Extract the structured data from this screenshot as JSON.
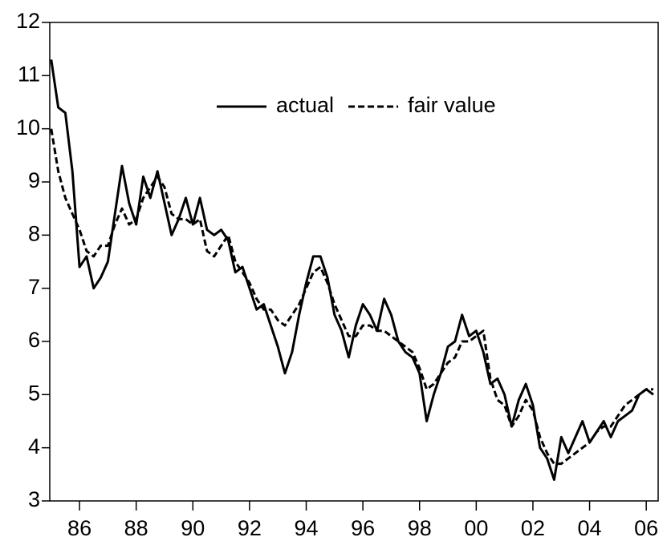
{
  "chart_data": {
    "type": "line",
    "x": [
      1985.0,
      1985.25,
      1985.5,
      1985.75,
      1986.0,
      1986.25,
      1986.5,
      1986.75,
      1987.0,
      1987.25,
      1987.5,
      1987.75,
      1988.0,
      1988.25,
      1988.5,
      1988.75,
      1989.0,
      1989.25,
      1989.5,
      1989.75,
      1990.0,
      1990.25,
      1990.5,
      1990.75,
      1991.0,
      1991.25,
      1991.5,
      1991.75,
      1992.0,
      1992.25,
      1992.5,
      1992.75,
      1993.0,
      1993.25,
      1993.5,
      1993.75,
      1994.0,
      1994.25,
      1994.5,
      1994.75,
      1995.0,
      1995.25,
      1995.5,
      1995.75,
      1996.0,
      1996.25,
      1996.5,
      1996.75,
      1997.0,
      1997.25,
      1997.5,
      1997.75,
      1998.0,
      1998.25,
      1998.5,
      1998.75,
      1999.0,
      1999.25,
      1999.5,
      1999.75,
      2000.0,
      2000.25,
      2000.5,
      2000.75,
      2001.0,
      2001.25,
      2001.5,
      2001.75,
      2002.0,
      2002.25,
      2002.5,
      2002.75,
      2003.0,
      2003.25,
      2003.5,
      2003.75,
      2004.0,
      2004.25,
      2004.5,
      2004.75,
      2005.0,
      2005.25,
      2005.5,
      2005.75,
      2006.0,
      2006.25
    ],
    "series": [
      {
        "name": "actual",
        "color": "#000000",
        "dash": "solid",
        "values": [
          11.3,
          10.4,
          10.3,
          9.2,
          7.4,
          7.6,
          7.0,
          7.2,
          7.5,
          8.4,
          9.3,
          8.6,
          8.2,
          9.1,
          8.7,
          9.2,
          8.6,
          8.0,
          8.3,
          8.7,
          8.2,
          8.7,
          8.1,
          8.0,
          8.1,
          7.9,
          7.3,
          7.4,
          7.0,
          6.6,
          6.7,
          6.3,
          5.9,
          5.4,
          5.8,
          6.5,
          7.1,
          7.6,
          7.6,
          7.2,
          6.5,
          6.2,
          5.7,
          6.3,
          6.7,
          6.5,
          6.2,
          6.8,
          6.5,
          6.0,
          5.8,
          5.7,
          5.4,
          4.5,
          5.0,
          5.4,
          5.9,
          6.0,
          6.5,
          6.1,
          6.2,
          5.8,
          5.2,
          5.3,
          5.0,
          4.4,
          4.9,
          5.2,
          4.8,
          4.0,
          3.8,
          3.4,
          4.2,
          3.9,
          4.2,
          4.5,
          4.1,
          4.3,
          4.5,
          4.2,
          4.5,
          4.6,
          4.7,
          5.0,
          5.1,
          5.0
        ]
      },
      {
        "name": "fair value",
        "color": "#000000",
        "dash": "dashed",
        "values": [
          10.0,
          9.2,
          8.7,
          8.4,
          8.1,
          7.7,
          7.6,
          7.8,
          7.8,
          8.2,
          8.5,
          8.2,
          8.3,
          8.7,
          8.9,
          9.1,
          8.9,
          8.4,
          8.3,
          8.3,
          8.2,
          8.3,
          7.7,
          7.6,
          7.8,
          8.0,
          7.5,
          7.3,
          7.1,
          6.8,
          6.6,
          6.6,
          6.4,
          6.3,
          6.5,
          6.7,
          7.0,
          7.3,
          7.4,
          7.1,
          6.7,
          6.4,
          6.1,
          6.1,
          6.3,
          6.3,
          6.2,
          6.2,
          6.1,
          6.0,
          5.9,
          5.8,
          5.5,
          5.1,
          5.2,
          5.4,
          5.6,
          5.7,
          6.0,
          6.0,
          6.1,
          6.2,
          5.3,
          4.9,
          4.8,
          4.4,
          4.6,
          4.9,
          4.7,
          4.2,
          3.9,
          3.7,
          3.7,
          3.8,
          3.9,
          4.0,
          4.1,
          4.3,
          4.4,
          4.4,
          4.6,
          4.8,
          4.9,
          5.0,
          5.1,
          5.1
        ]
      }
    ],
    "xlim": [
      1984.95,
      2006.42
    ],
    "xticks": [
      {
        "value": 1986,
        "label": "86"
      },
      {
        "value": 1988,
        "label": "88"
      },
      {
        "value": 1990,
        "label": "90"
      },
      {
        "value": 1992,
        "label": "92"
      },
      {
        "value": 1994,
        "label": "94"
      },
      {
        "value": 1996,
        "label": "96"
      },
      {
        "value": 1998,
        "label": "98"
      },
      {
        "value": 2000,
        "label": "00"
      },
      {
        "value": 2002,
        "label": "02"
      },
      {
        "value": 2004,
        "label": "04"
      },
      {
        "value": 2006,
        "label": "06"
      }
    ],
    "ylim": [
      3,
      12
    ],
    "yticks": [
      3,
      4,
      5,
      6,
      7,
      8,
      9,
      10,
      11,
      12
    ],
    "legend": "top"
  }
}
